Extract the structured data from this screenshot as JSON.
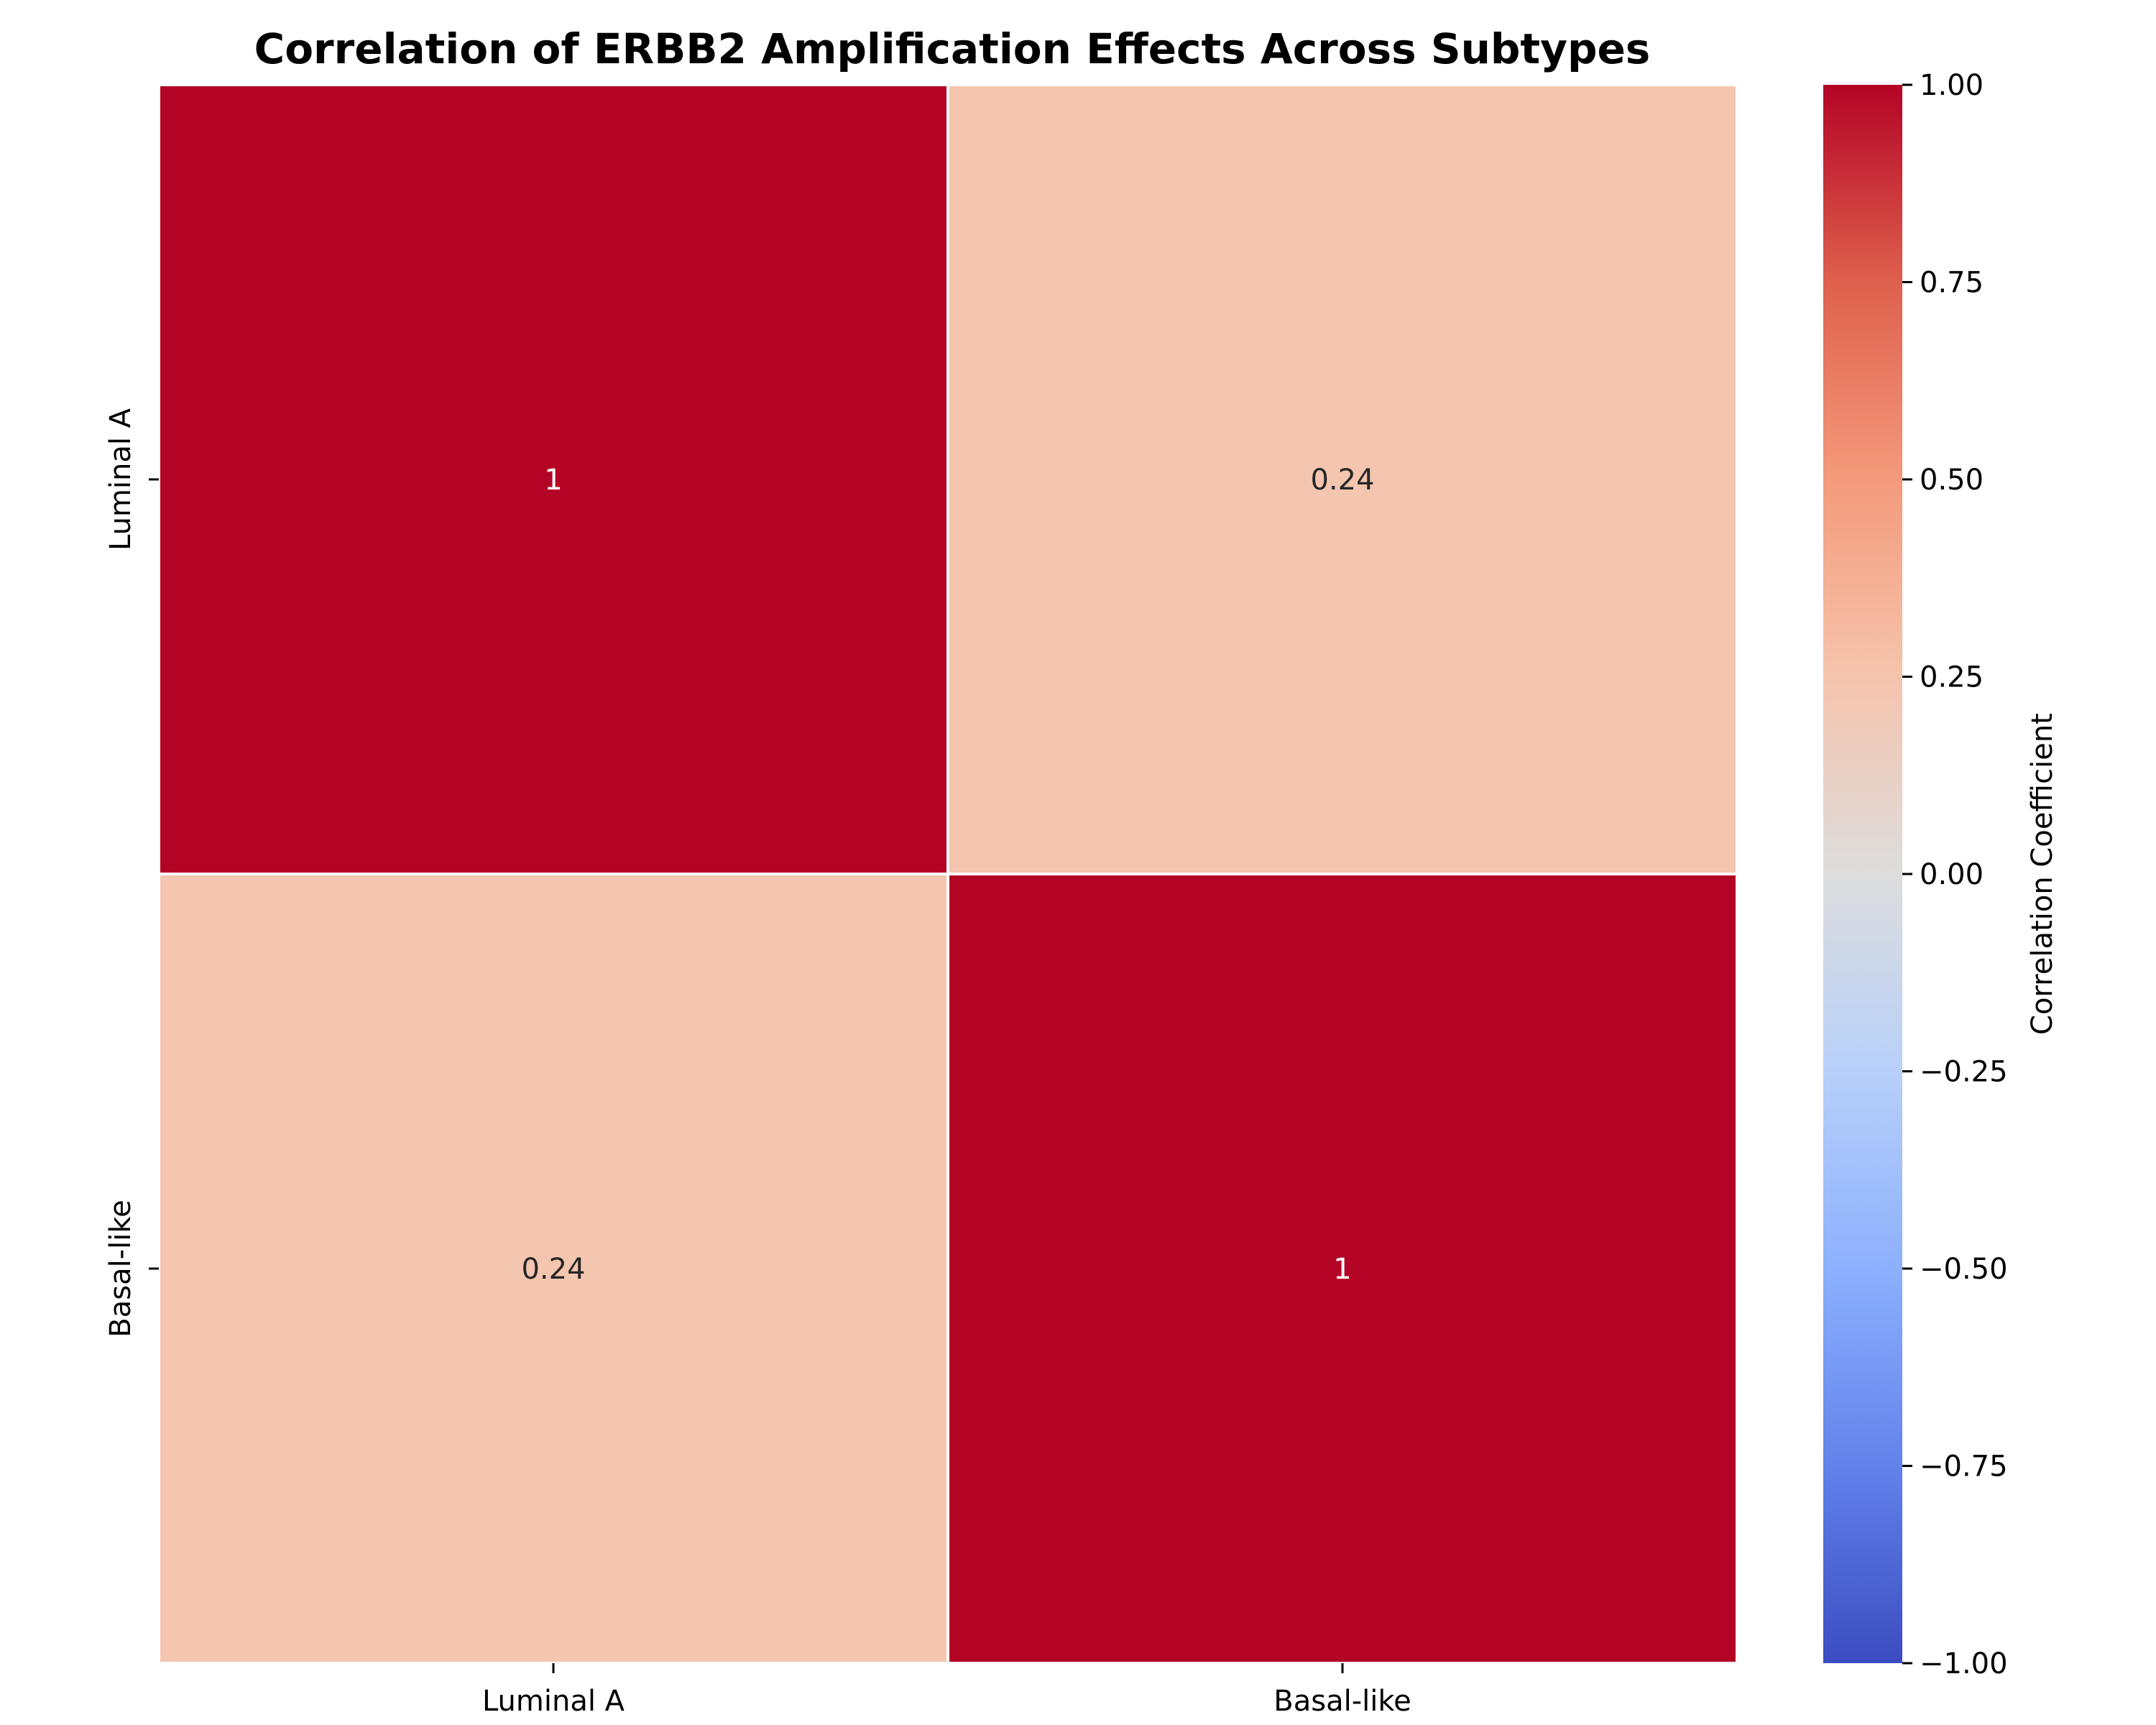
{
  "chart_data": {
    "type": "heatmap",
    "title": "Correlation of ERBB2 Amplification Effects Across Subtypes",
    "rows": [
      "Luminal A",
      "Basal-like"
    ],
    "columns": [
      "Luminal A",
      "Basal-like"
    ],
    "values": [
      [
        1,
        0.24
      ],
      [
        0.24,
        1
      ]
    ],
    "annotations": [
      [
        "1",
        "0.24"
      ],
      [
        "0.24",
        "1"
      ]
    ],
    "colormap": "coolwarm",
    "vmin": -1,
    "vmax": 1,
    "colorbar": {
      "label": "Correlation Coefficient",
      "ticks": [
        1.0,
        0.75,
        0.5,
        0.25,
        0.0,
        -0.25,
        -0.5,
        -0.75,
        -1.0
      ],
      "tick_labels": [
        "1.00",
        "0.75",
        "0.50",
        "0.25",
        "0.00",
        "−0.25",
        "−0.50",
        "−0.75",
        "−1.00"
      ]
    },
    "colors": {
      "high": "#b40426",
      "positive_low": "#f2c4ab",
      "grid_line": "#ffffff",
      "annotation_on_dark": "#ffffff",
      "annotation_on_light": "#262626"
    }
  }
}
